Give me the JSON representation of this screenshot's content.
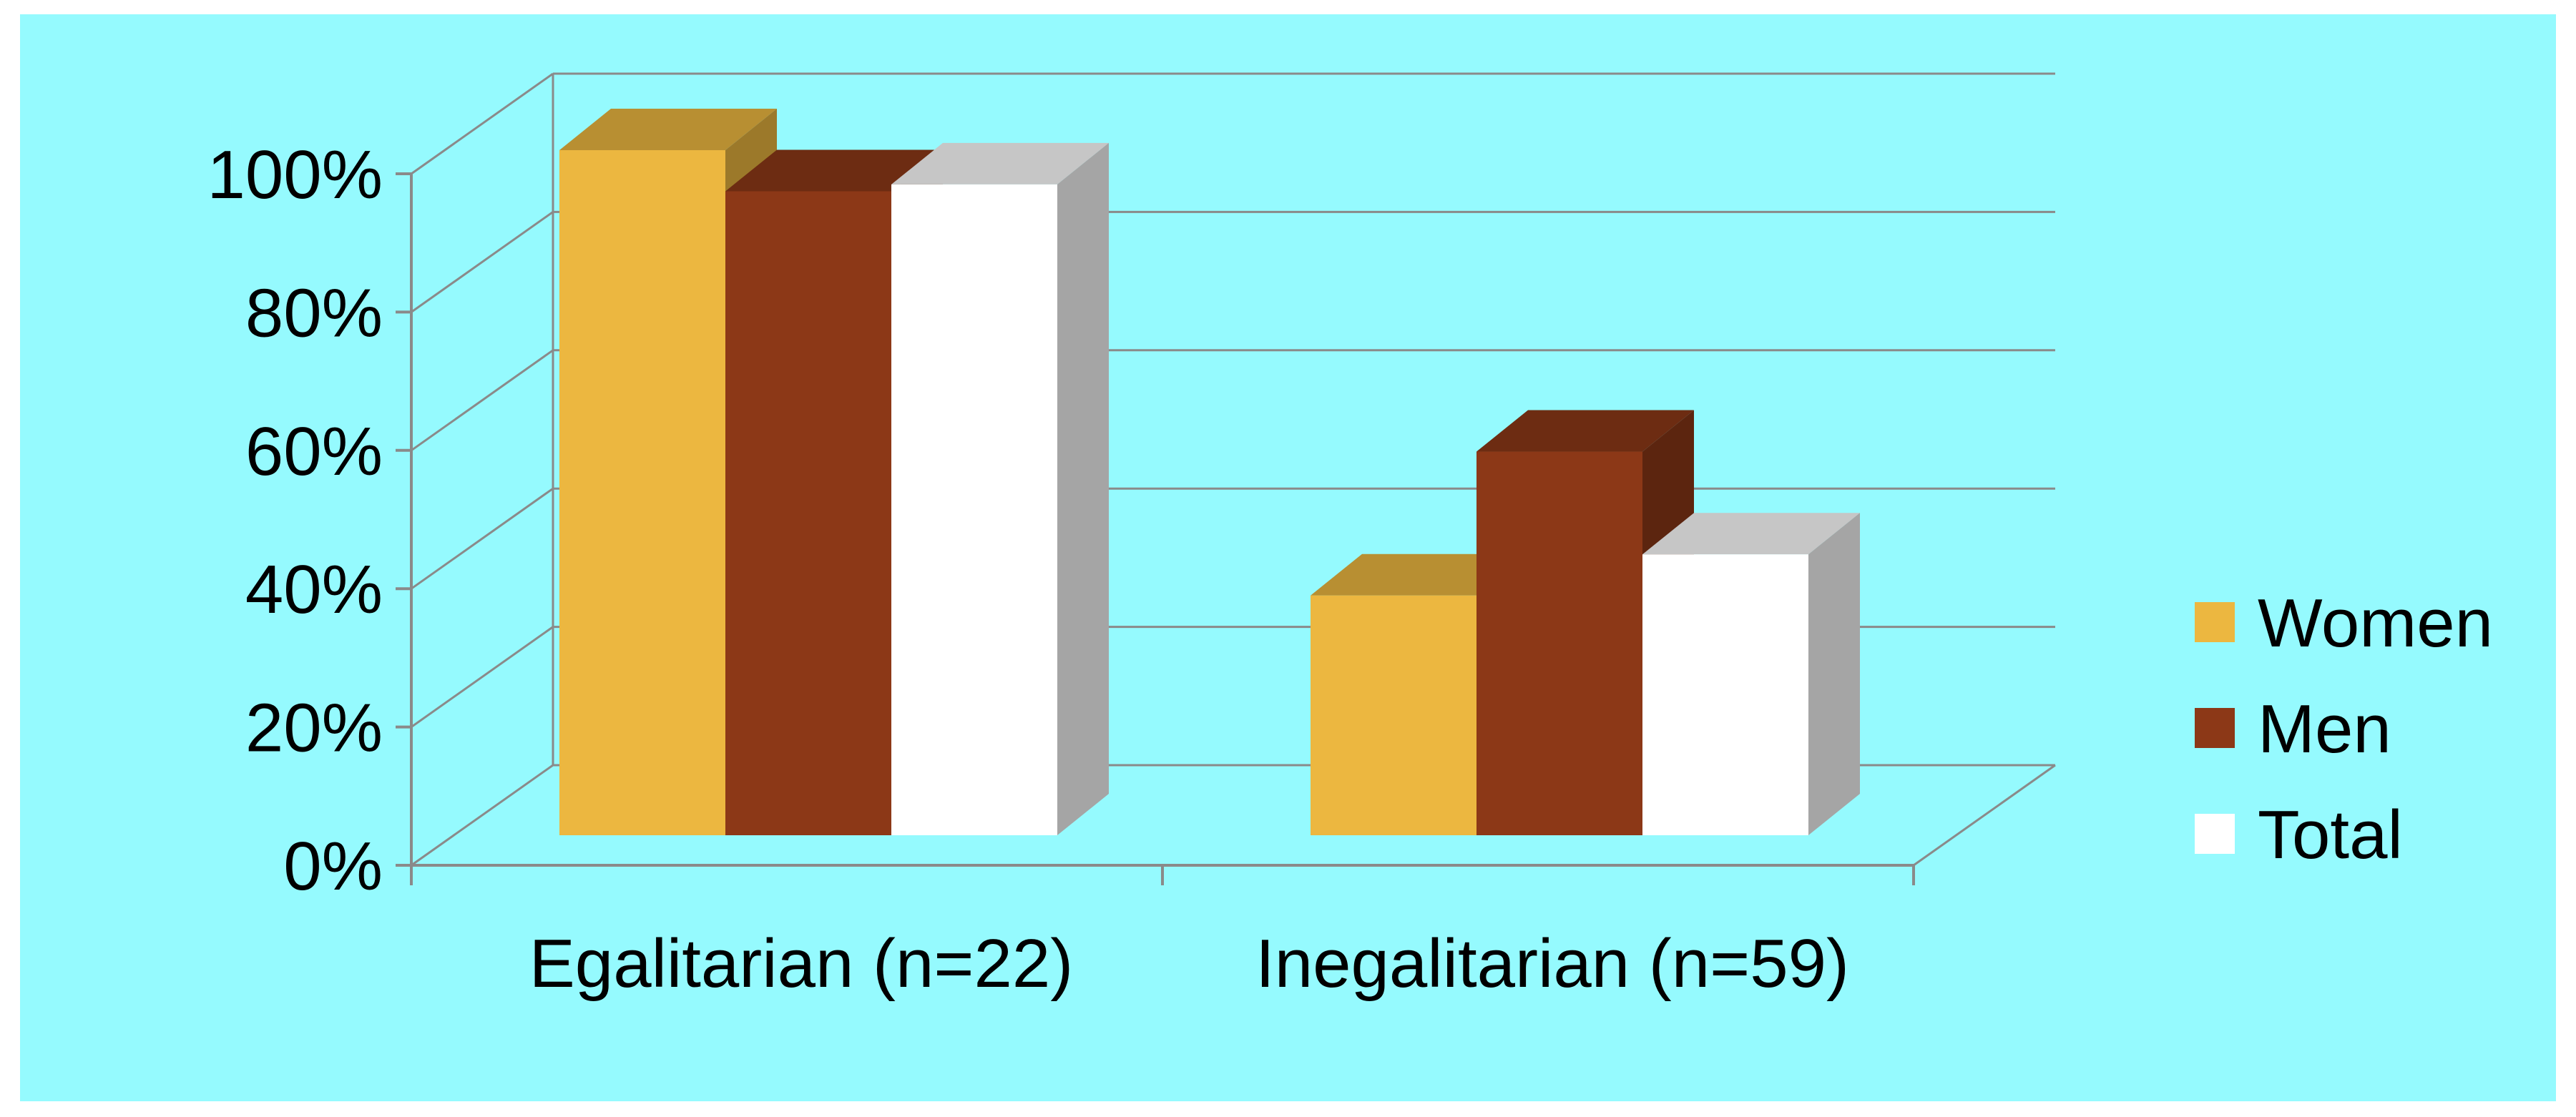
{
  "chart_data": {
    "type": "bar",
    "title": "",
    "xlabel": "",
    "ylabel": "",
    "ylim": [
      0,
      100
    ],
    "y_ticks": [
      "0%",
      "20%",
      "40%",
      "60%",
      "80%",
      "100%"
    ],
    "categories": [
      "Egalitarian (n=22)",
      "Inegalitarian (n=59)"
    ],
    "series": [
      {
        "name": "Women",
        "values": [
          100,
          35
        ],
        "color": "#ecb740"
      },
      {
        "name": "Men",
        "values": [
          94,
          56
        ],
        "color": "#8c3817"
      },
      {
        "name": "Total",
        "values": [
          95,
          41
        ],
        "color": "#ffffff"
      }
    ],
    "grid": true,
    "style": "3d-clustered-column",
    "legend_position": "right"
  }
}
